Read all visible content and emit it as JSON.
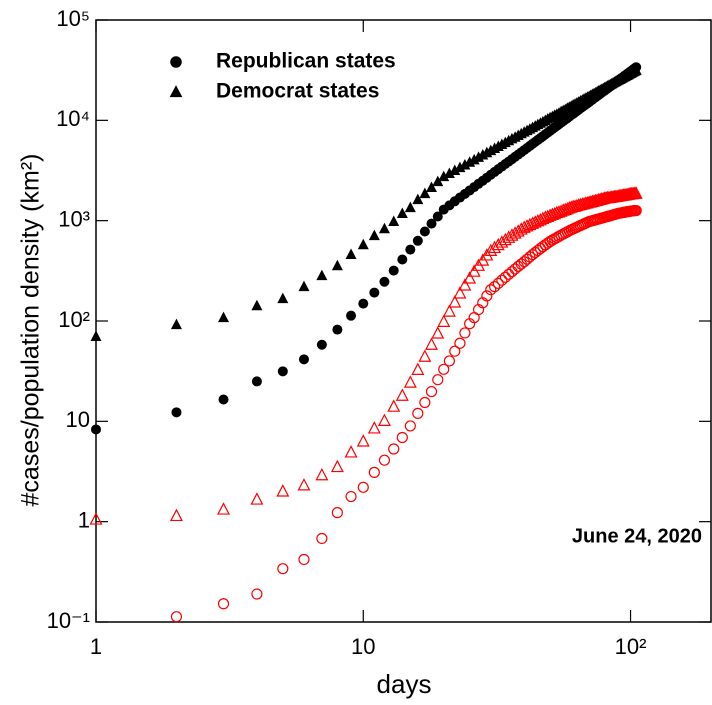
{
  "chart_data": {
    "type": "scatter",
    "xlabel": "days",
    "ylabel": "#cases/population density (km²)",
    "annotation": "June 24, 2020",
    "xscale": "log",
    "yscale": "log",
    "legend": "upper left",
    "xlim": [
      1,
      200
    ],
    "ylim": [
      0.1,
      100000
    ],
    "xticks": [
      1,
      10,
      {
        "value": 100,
        "label": "10²"
      }
    ],
    "yticks": [
      {
        "value": 0.1,
        "label": "10⁻¹"
      },
      1,
      10,
      {
        "value": 100,
        "label": "10²"
      },
      {
        "value": 1000,
        "label": "10³"
      },
      {
        "value": 10000,
        "label": "10⁴"
      },
      {
        "value": 100000,
        "label": "10⁵"
      }
    ],
    "x": [
      1,
      2,
      3,
      4,
      5,
      6,
      7,
      8,
      9,
      10,
      11,
      12,
      13,
      14,
      15,
      16,
      17,
      18,
      19,
      20,
      21,
      22,
      23,
      24,
      25,
      26,
      27,
      28,
      29,
      30,
      31,
      32,
      33,
      34,
      35,
      36,
      37,
      38,
      39,
      40,
      41,
      42,
      43,
      44,
      45,
      46,
      47,
      48,
      49,
      50,
      51,
      52,
      53,
      54,
      55,
      56,
      57,
      58,
      59,
      60,
      61,
      62,
      63,
      64,
      65,
      66,
      67,
      68,
      69,
      70,
      71,
      72,
      73,
      74,
      75,
      76,
      77,
      78,
      79,
      80,
      81,
      82,
      83,
      84,
      85,
      86,
      87,
      88,
      89,
      90,
      91,
      92,
      93,
      94,
      95,
      96,
      97,
      98,
      99,
      100,
      101,
      102,
      103,
      104,
      105
    ],
    "series": [
      {
        "name": "Republican states",
        "color": "#000000",
        "marker": "circle",
        "filled": true,
        "values": [
          8.3,
          12.3,
          16.5,
          25,
          31.5,
          41.5,
          58,
          82,
          113,
          149,
          192,
          246,
          318,
          410,
          515,
          630,
          780,
          935,
          1100,
          1290,
          1420,
          1560,
          1700,
          1850,
          2000,
          2160,
          2330,
          2500,
          2680,
          2870,
          3060,
          3260,
          3460,
          3670,
          3880,
          4100,
          4330,
          4560,
          4800,
          5050,
          5300,
          5560,
          5830,
          6100,
          6380,
          6660,
          6950,
          7250,
          7550,
          7860,
          8170,
          8490,
          8820,
          9150,
          9490,
          9830,
          10200,
          10500,
          10900,
          11300,
          11600,
          12000,
          12400,
          12800,
          13200,
          13600,
          14000,
          14400,
          14800,
          15200,
          15700,
          16100,
          16600,
          17000,
          17500,
          17900,
          18400,
          18900,
          19400,
          19800,
          20300,
          20800,
          21300,
          21800,
          22300,
          22900,
          23400,
          23900,
          24500,
          25000,
          25500,
          26100,
          26600,
          27200,
          27800,
          28300,
          28900,
          29500,
          30100,
          30700,
          31300,
          31900,
          32600,
          33200,
          33800
        ]
      },
      {
        "name": "Democrat states",
        "color": "#000000",
        "marker": "triangle",
        "filled": true,
        "values": [
          70,
          92,
          108,
          142,
          167,
          220,
          283,
          355,
          460,
          575,
          710,
          830,
          980,
          1180,
          1350,
          1620,
          1860,
          2140,
          2450,
          2750,
          2950,
          3160,
          3380,
          3590,
          3820,
          4040,
          4270,
          4510,
          4750,
          4990,
          5240,
          5490,
          5740,
          6000,
          6260,
          6530,
          6790,
          7070,
          7340,
          7620,
          7900,
          8180,
          8470,
          8760,
          9060,
          9360,
          9660,
          9960,
          10300,
          10600,
          10900,
          11200,
          11500,
          11800,
          12200,
          12500,
          12800,
          13200,
          13500,
          13800,
          14200,
          14500,
          14900,
          15200,
          15600,
          15900,
          16300,
          16600,
          17000,
          17300,
          17700,
          18100,
          18400,
          18800,
          19200,
          19600,
          20000,
          20300,
          20700,
          21100,
          21500,
          21900,
          22300,
          22700,
          23100,
          23500,
          23900,
          24300,
          24700,
          25100,
          25500,
          25900,
          26300,
          26800,
          27200,
          27600,
          28000,
          28400,
          28900,
          29300,
          29700,
          30200,
          30600,
          31000,
          31500
        ]
      },
      {
        "color": "#ff0000",
        "marker": "circle",
        "filled": false,
        "values": [
          null,
          0.113,
          0.152,
          0.19,
          0.34,
          0.42,
          0.68,
          1.23,
          1.78,
          2.2,
          3.1,
          4.1,
          5.3,
          6.9,
          9.0,
          12,
          15.4,
          19.8,
          26,
          33,
          40,
          50,
          60,
          76,
          94,
          108,
          130,
          152,
          178,
          205,
          220,
          237,
          255,
          273,
          292,
          310,
          330,
          350,
          370,
          390,
          413,
          436,
          459,
          482,
          505,
          528,
          551,
          574,
          597,
          620,
          640,
          659,
          678,
          697,
          716,
          735,
          754,
          773,
          792,
          810,
          827,
          844,
          861,
          878,
          895,
          912,
          929,
          946,
          963,
          980,
          990,
          1000,
          1010,
          1020,
          1030,
          1040,
          1050,
          1060,
          1070,
          1080,
          1090,
          1100,
          1110,
          1120,
          1130,
          1140,
          1150,
          1160,
          1170,
          1180,
          1190,
          1190,
          1200,
          1210,
          1210,
          1220,
          1230,
          1230,
          1240,
          1240,
          1250,
          1250,
          1260,
          1260,
          1260
        ]
      },
      {
        "color": "#ff0000",
        "marker": "triangle",
        "filled": false,
        "values": [
          1.05,
          1.14,
          1.32,
          1.66,
          2.0,
          2.3,
          2.9,
          3.5,
          4.9,
          6.3,
          8.5,
          10.1,
          14,
          18,
          24.3,
          32.6,
          44,
          58,
          75,
          98,
          124,
          153,
          188,
          226,
          265,
          310,
          355,
          400,
          450,
          500,
          535,
          570,
          605,
          640,
          675,
          710,
          745,
          780,
          815,
          850,
          877,
          904,
          931,
          958,
          985,
          1010,
          1040,
          1070,
          1090,
          1120,
          1140,
          1160,
          1190,
          1210,
          1230,
          1260,
          1280,
          1300,
          1330,
          1350,
          1370,
          1380,
          1400,
          1420,
          1430,
          1450,
          1460,
          1480,
          1490,
          1510,
          1520,
          1540,
          1550,
          1570,
          1580,
          1600,
          1610,
          1630,
          1640,
          1660,
          1670,
          1680,
          1680,
          1690,
          1700,
          1710,
          1720,
          1720,
          1730,
          1740,
          1750,
          1760,
          1770,
          1780,
          1780,
          1790,
          1800,
          1810,
          1820,
          1830,
          1840,
          1840,
          1850,
          1860,
          1860
        ]
      }
    ]
  }
}
